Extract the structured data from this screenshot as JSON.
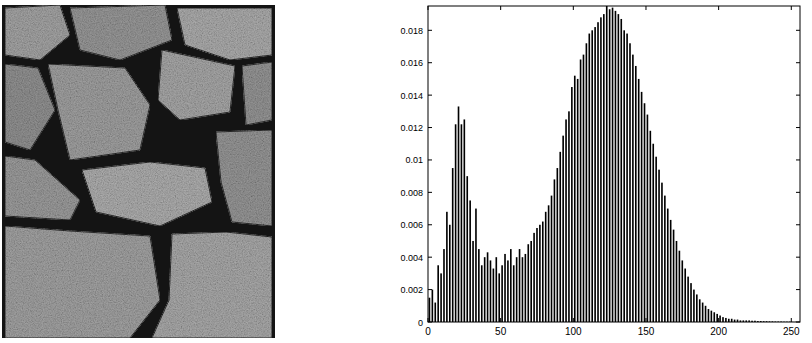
{
  "chart_data": {
    "type": "histogram",
    "color": "#000000",
    "bins": [
      0,
      2,
      4,
      6,
      8,
      10,
      12,
      14,
      16,
      18,
      20,
      22,
      24,
      26,
      28,
      30,
      32,
      34,
      36,
      38,
      40,
      42,
      44,
      46,
      48,
      50,
      52,
      54,
      56,
      58,
      60,
      62,
      64,
      66,
      68,
      70,
      72,
      74,
      76,
      78,
      80,
      82,
      84,
      86,
      88,
      90,
      92,
      94,
      96,
      98,
      100,
      102,
      104,
      106,
      108,
      110,
      112,
      114,
      116,
      118,
      120,
      122,
      124,
      126,
      128,
      130,
      132,
      134,
      136,
      138,
      140,
      142,
      144,
      146,
      148,
      150,
      152,
      154,
      156,
      158,
      160,
      162,
      164,
      166,
      168,
      170,
      172,
      174,
      176,
      178,
      180,
      182,
      184,
      186,
      188,
      190,
      192,
      194,
      196,
      198,
      200,
      202,
      204,
      206,
      208,
      210,
      212,
      214,
      216,
      218,
      220,
      222,
      224,
      226,
      228,
      230,
      232,
      234,
      236,
      238,
      240,
      242,
      244,
      246,
      248,
      250,
      252,
      254,
      256
    ],
    "values": [
      0.0015,
      0.002,
      0.0012,
      0.0035,
      0.003,
      0.0045,
      0.0068,
      0.006,
      0.0095,
      0.0122,
      0.0133,
      0.0122,
      0.0125,
      0.009,
      0.0075,
      0.005,
      0.007,
      0.0045,
      0.0035,
      0.004,
      0.0043,
      0.0038,
      0.0033,
      0.004,
      0.003,
      0.0035,
      0.0042,
      0.0038,
      0.0045,
      0.0035,
      0.004,
      0.0045,
      0.004,
      0.0042,
      0.0048,
      0.005,
      0.0055,
      0.0058,
      0.006,
      0.0062,
      0.0068,
      0.0072,
      0.0078,
      0.0088,
      0.0095,
      0.0105,
      0.0115,
      0.0125,
      0.013,
      0.0145,
      0.0152,
      0.015,
      0.0162,
      0.0165,
      0.0172,
      0.0178,
      0.018,
      0.0182,
      0.0185,
      0.0188,
      0.019,
      0.0195,
      0.0193,
      0.0194,
      0.0192,
      0.019,
      0.0187,
      0.018,
      0.0178,
      0.0172,
      0.0165,
      0.0158,
      0.015,
      0.0142,
      0.0135,
      0.0128,
      0.0118,
      0.011,
      0.0102,
      0.0094,
      0.0086,
      0.0078,
      0.007,
      0.0063,
      0.0057,
      0.005,
      0.0044,
      0.0038,
      0.0033,
      0.0028,
      0.0024,
      0.002,
      0.0017,
      0.0014,
      0.0012,
      0.001,
      0.0008,
      0.0007,
      0.0006,
      0.0005,
      0.0004,
      0.0003,
      0.00025,
      0.0002,
      0.0002,
      0.00015,
      0.00015,
      0.0001,
      0.0001,
      0.0001,
      0.0001,
      8e-05,
      8e-05,
      6e-05,
      6e-05,
      5e-05,
      5e-05,
      4e-05,
      4e-05,
      3e-05,
      3e-05,
      3e-05,
      2e-05,
      2e-05,
      2e-05,
      1e-05,
      1e-05,
      1e-05
    ],
    "xlim": [
      0,
      256
    ],
    "ylim": [
      0,
      0.0195
    ],
    "xticks": [
      0,
      50,
      100,
      150,
      200,
      250
    ],
    "yticks": [
      0,
      0.002,
      0.004,
      0.006,
      0.008,
      0.01,
      0.012,
      0.014,
      0.016,
      0.018
    ],
    "grid": false
  }
}
